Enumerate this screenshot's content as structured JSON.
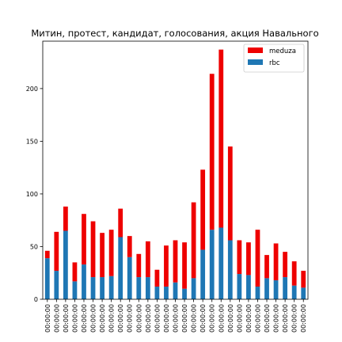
{
  "chart_data": {
    "type": "bar",
    "stacked": true,
    "title": "Митин, протест, кандидат, голосования, акция Навального",
    "xlabel": "",
    "ylabel": "",
    "ylim": [
      0,
      245
    ],
    "yticks": [
      0,
      50,
      100,
      150,
      200
    ],
    "grid": false,
    "legend_position": "top-right",
    "categories": [
      "00:00:00",
      "00:00:00",
      "00:00:00",
      "00:00:00",
      "00:00:00",
      "00:00:00",
      "00:00:00",
      "00:00:00",
      "00:00:00",
      "00:00:00",
      "00:00:00",
      "00:00:00",
      "00:00:00",
      "00:00:00",
      "00:00:00",
      "00:00:00",
      "00:00:00",
      "00:00:00",
      "00:00:00",
      "00:00:00",
      "00:00:00",
      "00:00:00",
      "00:00:00",
      "00:00:00",
      "00:00:00",
      "00:00:00",
      "00:00:00",
      "00:00:00",
      "00:00:00"
    ],
    "series": [
      {
        "name": "rbc",
        "color": "#1f77b4",
        "values": [
          39,
          27,
          65,
          17,
          33,
          21,
          21,
          22,
          59,
          40,
          21,
          21,
          12,
          12,
          16,
          10,
          20,
          47,
          66,
          68,
          56,
          24,
          23,
          12,
          20,
          18,
          21,
          13,
          11
        ]
      },
      {
        "name": "meduza",
        "color": "#ee0000",
        "values": [
          7,
          37,
          23,
          18,
          48,
          53,
          42,
          44,
          27,
          20,
          22,
          34,
          16,
          39,
          40,
          44,
          72,
          76,
          148,
          169,
          89,
          32,
          31,
          54,
          22,
          35,
          24,
          23,
          16
        ]
      }
    ]
  }
}
